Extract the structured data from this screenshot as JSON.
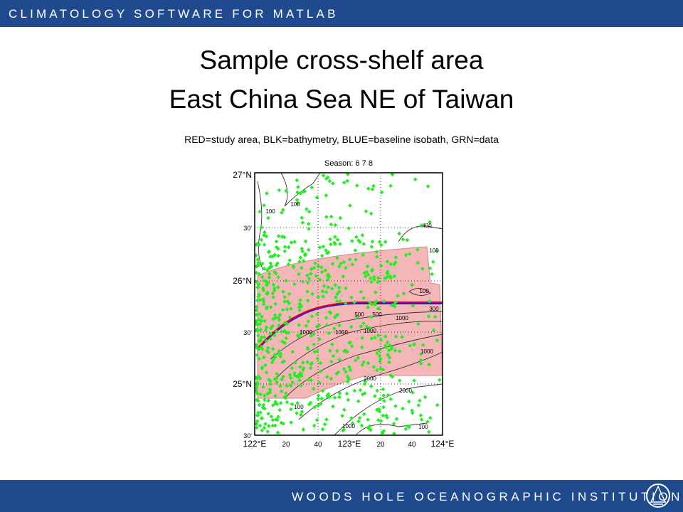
{
  "header": {
    "text": "CLIMATOLOGY SOFTWARE FOR MATLAB"
  },
  "title": {
    "line1": "Sample cross-shelf area",
    "line2": "East China Sea NE of Taiwan"
  },
  "figure": {
    "caption": "RED=study area, BLK=bathymetry, BLUE=baseline isobath, GRN=data",
    "season": "Season: 6 7 8",
    "y_labels": [
      "27°N",
      "30'",
      "26°N",
      "30'",
      "25°N",
      "30'"
    ],
    "x_labels": [
      "122°E",
      "20",
      "40",
      "123°E",
      "20",
      "40",
      "124°E"
    ],
    "contour_labels": [
      "100",
      "100",
      "400",
      "100",
      "100",
      "500",
      "500",
      "300",
      "1000",
      "1000",
      "1000",
      "1000",
      "2000",
      "2000",
      "1000",
      "100",
      "1000",
      "100"
    ]
  },
  "footer": {
    "text": "WOODS HOLE OCEANOGRAPHIC INSTITUTION"
  }
}
